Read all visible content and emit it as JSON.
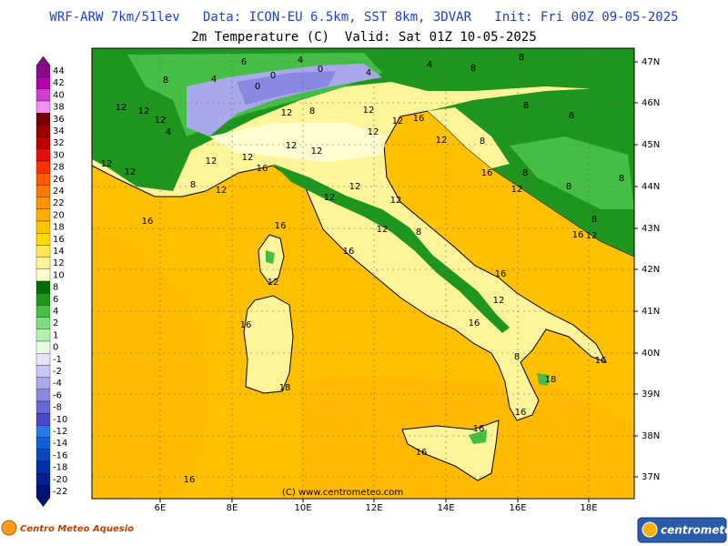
{
  "header": {
    "title": "WRF-ARW 7km/51lev   Data: ICON-EU 6.5km, SST 8km, 3DVAR   Init: Fri 00Z 09-05-2025",
    "subtitle": "2m Temperature (C)  Valid: Sat 01Z 10-05-2025"
  },
  "colorbar": {
    "levels": [
      44,
      42,
      40,
      38,
      36,
      34,
      32,
      30,
      28,
      26,
      24,
      22,
      20,
      18,
      16,
      14,
      12,
      10,
      8,
      6,
      4,
      2,
      1,
      0,
      -1,
      -2,
      -4,
      -6,
      -8,
      -10,
      -12,
      -14,
      -16,
      -18,
      -20,
      -22
    ],
    "colors": [
      "#8a0a8a",
      "#b000b0",
      "#d040d0",
      "#f090f0",
      "#7a0000",
      "#9a0000",
      "#c00000",
      "#e01010",
      "#ff3000",
      "#ff5a00",
      "#ff7800",
      "#ff9400",
      "#ffac00",
      "#ffc400",
      "#ffd800",
      "#ffe850",
      "#fff49a",
      "#fffcd0",
      "#006e00",
      "#1e961e",
      "#46be46",
      "#7ede7e",
      "#b4f0b4",
      "#e6ffe6",
      "#e4e4fa",
      "#c8c8f2",
      "#a8a8ea",
      "#8888e0",
      "#6868d4",
      "#4848c8",
      "#2878e8",
      "#1060d8",
      "#0848c0",
      "#0030a8",
      "#002090",
      "#001478"
    ]
  },
  "map": {
    "lon_labels": [
      "6E",
      "8E",
      "10E",
      "12E",
      "14E",
      "16E",
      "18E"
    ],
    "lat_labels": [
      "47N",
      "46N",
      "45N",
      "44N",
      "43N",
      "42N",
      "41N",
      "40N",
      "39N",
      "38N",
      "37N"
    ],
    "contour_labels": [
      "6",
      "4",
      "0",
      "0",
      "4",
      "4",
      "8",
      "8",
      "8",
      "4",
      "0",
      "12",
      "12",
      "12",
      "4",
      "12",
      "8",
      "12",
      "12",
      "16",
      "12",
      "8",
      "8",
      "12",
      "12",
      "12",
      "12",
      "16",
      "8",
      "12",
      "12",
      "12",
      "12",
      "8",
      "16",
      "8",
      "12",
      "8",
      "8",
      "12",
      "12",
      "12",
      "12",
      "8",
      "16",
      "16",
      "16",
      "12",
      "8",
      "16",
      "12",
      "16",
      "12",
      "16",
      "16",
      "8",
      "18",
      "18",
      "16",
      "16",
      "16",
      "16",
      "16"
    ],
    "copyright": "(C) www.centrometeo.com"
  },
  "footer": {
    "left_logo": "Centro Meteo Aquesio",
    "right_logo": "centrometeo"
  }
}
